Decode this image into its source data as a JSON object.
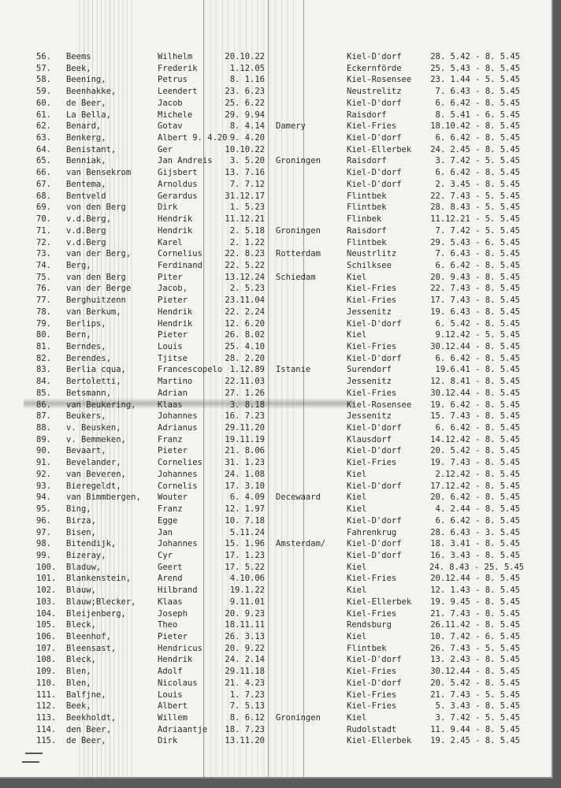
{
  "document": {
    "type": "typed list scan",
    "rows": [
      {
        "no": "56.",
        "surname": "Beems",
        "first": "Wilhelm",
        "dob": "20.10.22",
        "birthplace": "",
        "camp": "Kiel-D'dorf",
        "period": "28. 5.42 - 8. 5.45"
      },
      {
        "no": "57.",
        "surname": "Beek,",
        "first": "Frederik",
        "dob": "1.12.05",
        "birthplace": "",
        "camp": "Eckernförde",
        "period": "25. 5.43 - 8. 5.45"
      },
      {
        "no": "58.",
        "surname": "Beening,",
        "first": "Petrus",
        "dob": "8. 1.16",
        "birthplace": "",
        "camp": "Kiel-Rosensee",
        "period": "23. 1.44 - 5. 5.45"
      },
      {
        "no": "59.",
        "surname": "Beenhakke,",
        "first": "Leendert",
        "dob": "23. 6.23",
        "birthplace": "",
        "camp": "Neustrelitz",
        "period": "7. 6.43 - 8. 5.45"
      },
      {
        "no": "60.",
        "surname": "de Beer,",
        "first": "Jacob",
        "dob": "25. 6.22",
        "birthplace": "",
        "camp": "Kiel-D'dorf",
        "period": "6. 6.42 - 8. 5.45"
      },
      {
        "no": "61.",
        "surname": "La Bella,",
        "first": "Michele",
        "dob": "29. 9.94",
        "birthplace": "",
        "camp": "Raisdorf",
        "period": "8. 5.41 - 6. 5.45"
      },
      {
        "no": "62.",
        "surname": "Benard,",
        "first": "Gotav",
        "dob": "8. 4.14",
        "birthplace": "Damery",
        "camp": "Kiel-Fries",
        "period": "18.10.42 - 8. 5.45"
      },
      {
        "no": "63.",
        "surname": "Benkerg,",
        "first": "Albert 9. 4.20",
        "dob": "9. 4.20",
        "birthplace": "",
        "camp": "Kiel-D'dorf",
        "period": "6. 6.42 - 8. 5.45"
      },
      {
        "no": "64.",
        "surname": "Benistant,",
        "first": "Ger",
        "dob": "10.10.22",
        "birthplace": "",
        "camp": "Kiel-Ellerbek",
        "period": "24. 2.45 - 8. 5.45"
      },
      {
        "no": "65.",
        "surname": "Benniak,",
        "first": "Jan Andreis",
        "dob": "3. 5.20",
        "birthplace": "Groningen",
        "camp": "Raisdorf",
        "period": "3. 7.42 - 5. 5.45"
      },
      {
        "no": "66.",
        "surname": "van Bensekrom",
        "first": "Gijsbert",
        "dob": "13. 7.16",
        "birthplace": "",
        "camp": "Kiel-D'dorf",
        "period": "6. 6.42 - 8. 5.45"
      },
      {
        "no": "67.",
        "surname": "Bentema,",
        "first": "Arnoldus",
        "dob": "7. 7.12",
        "birthplace": "",
        "camp": "Kiel-D'dorf",
        "period": "2. 3.45 - 8. 5.45"
      },
      {
        "no": "68.",
        "surname": "Bentveld",
        "first": "Gerardus",
        "dob": "31.12.17",
        "birthplace": "",
        "camp": "Flintbek",
        "period": "22. 7.43 - 5. 5.45"
      },
      {
        "no": "69.",
        "surname": "von den Berg",
        "first": "Dirk",
        "dob": "1. 5.23",
        "birthplace": "",
        "camp": "Flintbek",
        "period": "28. 8.43 - 5. 5.45"
      },
      {
        "no": "70.",
        "surname": "v.d.Berg,",
        "first": "Hendrik",
        "dob": "11.12.21",
        "birthplace": "",
        "camp": "Flinbek",
        "period": "11.12.21 - 5. 5.45"
      },
      {
        "no": "71.",
        "surname": "v.d.Berg",
        "first": "Hendrik",
        "dob": "2. 5.18",
        "birthplace": "Groningen",
        "camp": "Raisdorf",
        "period": "7. 7.42 - 5. 5.45"
      },
      {
        "no": "72.",
        "surname": "v.d.Berg",
        "first": "Karel",
        "dob": "2. 1.22",
        "birthplace": "",
        "camp": "Flintbek",
        "period": "29. 5.43 - 6. 5.45"
      },
      {
        "no": "73.",
        "surname": "van der Berg,",
        "first": "Cornelius",
        "dob": "22. 8.23",
        "birthplace": "Rotterdam",
        "camp": "Neustrlitz",
        "period": "7. 6.43 - 8. 5.45"
      },
      {
        "no": "74.",
        "surname": "Berg,",
        "first": "Ferdinand",
        "dob": "22. 5.22",
        "birthplace": "",
        "camp": "Schilksee",
        "period": "6. 6.42 - 8. 5.45"
      },
      {
        "no": "75.",
        "surname": "van den Berg",
        "first": "Piter",
        "dob": "13.12.24",
        "birthplace": "Schiedam",
        "camp": "Kiel",
        "period": "20. 9.43 - 8. 5.45"
      },
      {
        "no": "76.",
        "surname": "van der Berge",
        "first": "Jacob,",
        "dob": "2. 5.23",
        "birthplace": "",
        "camp": "Kiel-Fries",
        "period": "22. 7.43 - 8. 5.45"
      },
      {
        "no": "77.",
        "surname": "Berghuitzenn",
        "first": "Pieter",
        "dob": "23.11.04",
        "birthplace": "",
        "camp": "Kiel-Fries",
        "period": "17. 7.43 - 8. 5.45"
      },
      {
        "no": "78.",
        "surname": "van Berkum,",
        "first": "Hendrik",
        "dob": "22. 2.24",
        "birthplace": "",
        "camp": "Jessenitz",
        "period": "19. 6.43 - 8. 5.45"
      },
      {
        "no": "79.",
        "surname": "Berlips,",
        "first": "Hendrik",
        "dob": "12. 6.20",
        "birthplace": "",
        "camp": "Kiel-D'dorf",
        "period": "6. 5.42 - 8. 5.45"
      },
      {
        "no": "80.",
        "surname": "Bern,",
        "first": "Pieter",
        "dob": "26. 8.02",
        "birthplace": "",
        "camp": "Kiel",
        "period": "9.12.42 - 5. 5.45"
      },
      {
        "no": "81.",
        "surname": "Berndes,",
        "first": "Louis",
        "dob": "25. 4.10",
        "birthplace": "",
        "camp": "Kiel-Fries",
        "period": "30.12.44 - 8. 5.45"
      },
      {
        "no": "82.",
        "surname": "Berendes,",
        "first": "Tjitse",
        "dob": "28. 2.20",
        "birthplace": "",
        "camp": "Kiel-D'dorf",
        "period": "6. 6.42 - 8. 5.45"
      },
      {
        "no": "83.",
        "surname": "Berlia cqua,",
        "first": "Francescopelo",
        "dob": "1.12.89",
        "birthplace": "Istanie",
        "camp": "Surendorf",
        "period": "19.6.41 - 8. 5.45"
      },
      {
        "no": "84.",
        "surname": "Bertoletti,",
        "first": "Martino",
        "dob": "22.11.03",
        "birthplace": "",
        "camp": "Jessenitz",
        "period": "12. 8.41 - 8. 5.45"
      },
      {
        "no": "85.",
        "surname": "Betsmann,",
        "first": "Adrian",
        "dob": "27. 1.26",
        "birthplace": "",
        "camp": "Kiel-Fries",
        "period": "30.12.44 - 8. 5.45"
      },
      {
        "no": "86.",
        "surname": "van Beukering,",
        "first": "Klaas",
        "dob": "3. 8.18",
        "birthplace": "",
        "camp": "Kiel-Rosensee",
        "period": "19. 6.42 - 8. 5.45"
      },
      {
        "no": "87.",
        "surname": "Beukers,",
        "first": "Johannes",
        "dob": "16. 7.23",
        "birthplace": "",
        "camp": "Jessenitz",
        "period": "15. 7.43 - 8. 5.45"
      },
      {
        "no": "88.",
        "surname": "v. Beusken,",
        "first": "Adrianus",
        "dob": "29.11.20",
        "birthplace": "",
        "camp": "Kiel-D'dorf",
        "period": "6. 6.42 - 8. 5.45"
      },
      {
        "no": "89.",
        "surname": "v. Bemmeken,",
        "first": "Franz",
        "dob": "19.11.19",
        "birthplace": "",
        "camp": "Klausdorf",
        "period": "14.12.42 - 8. 5.45"
      },
      {
        "no": "90.",
        "surname": "Bevaart,",
        "first": "Pieter",
        "dob": "21. 8.06",
        "birthplace": "",
        "camp": "Kiel-D'dorf",
        "period": "20. 5.42 - 8. 5.45"
      },
      {
        "no": "91.",
        "surname": "Bevelander,",
        "first": "Cornelies",
        "dob": "31. 1.23",
        "birthplace": "",
        "camp": "Kiel-Fries",
        "period": "19. 7.43 - 8. 5.45"
      },
      {
        "no": "92.",
        "surname": "van Beveren,",
        "first": "Johannes",
        "dob": "24. 1.08",
        "birthplace": "",
        "camp": "Kiel",
        "period": "2.12.42 - 8. 5.45"
      },
      {
        "no": "93.",
        "surname": "Bieregeldt,",
        "first": "Cornelis",
        "dob": "17. 3.10",
        "birthplace": "",
        "camp": "Kiel-D'dorf",
        "period": "17.12.42 - 8. 5.45"
      },
      {
        "no": "94.",
        "surname": "van Bimmbergen,",
        "first": "Wouter",
        "dob": "6. 4.09",
        "birthplace": "Decewaard",
        "camp": "Kiel",
        "period": "20. 6.42 - 8. 5.45"
      },
      {
        "no": "95.",
        "surname": "Bing,",
        "first": "Franz",
        "dob": "12. 1.97",
        "birthplace": "",
        "camp": "Kiel",
        "period": "4. 2.44 - 8. 5.45"
      },
      {
        "no": "96.",
        "surname": "Birza,",
        "first": "Egge",
        "dob": "10. 7.18",
        "birthplace": "",
        "camp": "Kiel-D'dorf",
        "period": "6. 6.42 - 8. 5.45"
      },
      {
        "no": "97.",
        "surname": "Bisen,",
        "first": "Jan",
        "dob": "5.11.24",
        "birthplace": "",
        "camp": "Fahrenkrug",
        "period": "28. 6.43 - 3. 5.45"
      },
      {
        "no": "98.",
        "surname": "Bitendijk,",
        "first": "Johannes",
        "dob": "15. 1.96",
        "birthplace": "Amsterdam/",
        "camp": "Kiel-D'dorf",
        "period": "18. 3.41 - 8. 5.45"
      },
      {
        "no": "99.",
        "surname": "Bizeray,",
        "first": "Cyr",
        "dob": "17. 1.23",
        "birthplace": "",
        "camp": "Kiel-D'dorf",
        "period": "16. 3.43 - 8. 5.45"
      },
      {
        "no": "100.",
        "surname": "Bladuw,",
        "first": "Geert",
        "dob": "17. 5.22",
        "birthplace": "",
        "camp": "Kiel",
        "period": "24. 8.43 - 25. 5.45"
      },
      {
        "no": "101.",
        "surname": "Blankenstein,",
        "first": "Arend",
        "dob": "4.10.06",
        "birthplace": "",
        "camp": "Kiel-Fries",
        "period": "20.12.44 - 8. 5.45"
      },
      {
        "no": "102.",
        "surname": "Blauw,",
        "first": "Hilbrand",
        "dob": "19.1.22",
        "birthplace": "",
        "camp": "Kiel",
        "period": "12. 1.43 - 8. 5.45"
      },
      {
        "no": "103.",
        "surname": "Blauw;Blecker,",
        "first": "Klaas",
        "dob": "9.11.01",
        "birthplace": "",
        "camp": "Kiel-Ellerbek",
        "period": "19. 9.45 - 8. 5.45"
      },
      {
        "no": "104.",
        "surname": "Bleijenberg,",
        "first": "Joseph",
        "dob": "20. 9.23",
        "birthplace": "",
        "camp": "Kiel-Fries",
        "period": "21. 7.43 - 8. 5.45"
      },
      {
        "no": "105.",
        "surname": "Bleck,",
        "first": "Theo",
        "dob": "18.11.11",
        "birthplace": "",
        "camp": "Rendsburg",
        "period": "26.11.42 - 8. 5.45"
      },
      {
        "no": "106.",
        "surname": "Bleenhof,",
        "first": "Pieter",
        "dob": "26. 3.13",
        "birthplace": "",
        "camp": "Kiel",
        "period": "10. 7.42 - 6. 5.45"
      },
      {
        "no": "107.",
        "surname": "Bleensast,",
        "first": "Hendricus",
        "dob": "20. 9.22",
        "birthplace": "",
        "camp": "Flintbek",
        "period": "26. 7.43 - 5. 5.45"
      },
      {
        "no": "108.",
        "surname": "Bleck,",
        "first": "Hendrik",
        "dob": "24. 2.14",
        "birthplace": "",
        "camp": "Kiel-D'dorf",
        "period": "13. 2.43 - 8. 5.45"
      },
      {
        "no": "109.",
        "surname": "Blen,",
        "first": "Adolf",
        "dob": "29.11.18",
        "birthplace": "",
        "camp": "Kiel-Fries",
        "period": "30.12.44 - 8. 5.45"
      },
      {
        "no": "110.",
        "surname": "Blen,",
        "first": "Nicolaus",
        "dob": "21. 4.23",
        "birthplace": "",
        "camp": "Kiel-D'dorf",
        "period": "20. 5.42 - 8. 5.45"
      },
      {
        "no": "111.",
        "surname": "Balfjne,",
        "first": "Louis",
        "dob": "1. 7.23",
        "birthplace": "",
        "camp": "Kiel-Fries",
        "period": "21. 7.43 - 5. 5.45"
      },
      {
        "no": "112.",
        "surname": "Beek,",
        "first": "Albert",
        "dob": "7. 5.13",
        "birthplace": "",
        "camp": "Kiel-Fries",
        "period": "5. 3.43 - 8. 5.45"
      },
      {
        "no": "113.",
        "surname": "Beekholdt,",
        "first": "Willem",
        "dob": "8. 6.12",
        "birthplace": "Groningen",
        "camp": "Kiel",
        "period": "3. 7.42 - 5. 5.45"
      },
      {
        "no": "114.",
        "surname": "den Beer,",
        "first": "Adriaantje",
        "dob": "18. 7.23",
        "birthplace": "",
        "camp": "Rudolstadt",
        "period": "11. 9.44 - 8. 5.45"
      },
      {
        "no": "115.",
        "surname": "de Beer,",
        "first": "Dirk",
        "dob": "13.11.20",
        "birthplace": "",
        "camp": "Kiel-Ellerbek",
        "period": "19. 2.45 - 8. 5.45"
      }
    ]
  }
}
